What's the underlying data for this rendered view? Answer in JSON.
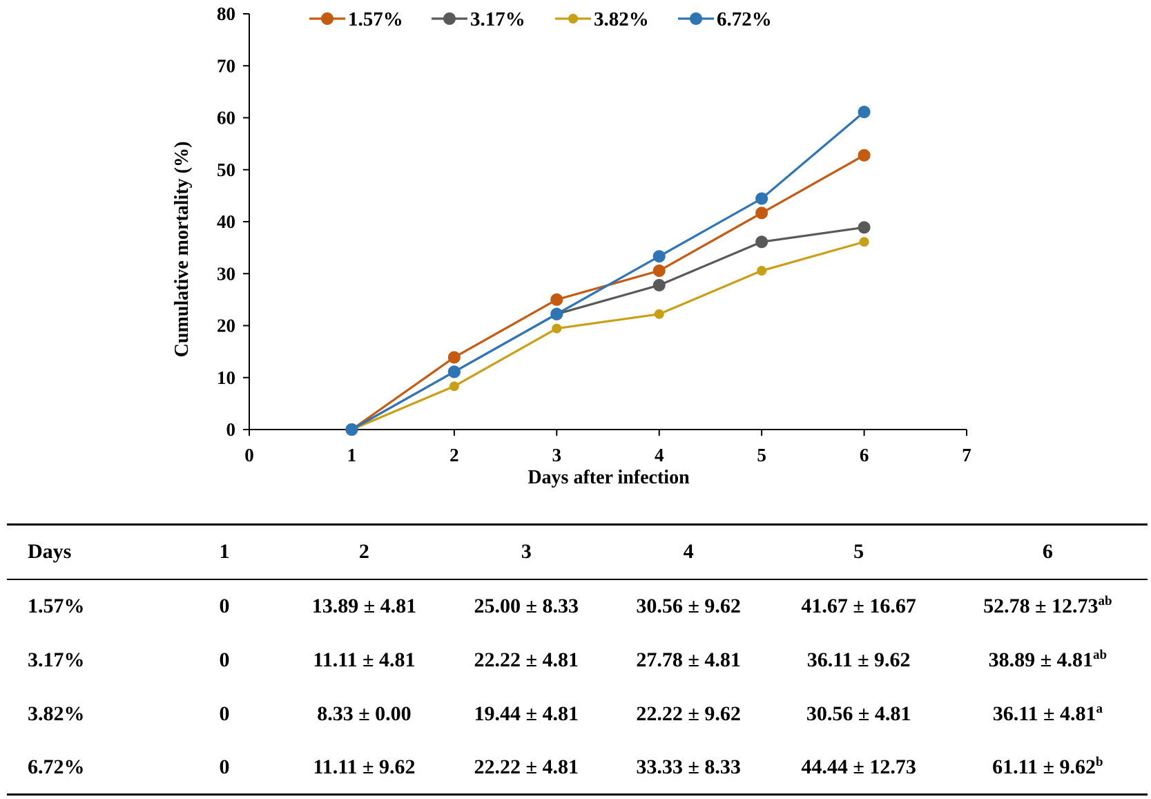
{
  "chart_data": {
    "type": "line",
    "xlabel": "Days after infection",
    "ylabel": "Cumulative mortality (%)",
    "xlim": [
      0,
      7
    ],
    "ylim": [
      0,
      80
    ],
    "x_ticks": [
      "0",
      "1",
      "2",
      "3",
      "4",
      "5",
      "6",
      "7"
    ],
    "y_ticks": [
      "0",
      "10",
      "20",
      "30",
      "40",
      "50",
      "60",
      "70",
      "80"
    ],
    "grid": false,
    "legend_position": "top",
    "x": [
      1,
      2,
      3,
      4,
      5,
      6
    ],
    "series": [
      {
        "name": "1.57%",
        "color": "#C55A11",
        "marker": "large",
        "values": [
          0,
          13.89,
          25.0,
          30.56,
          41.67,
          52.78
        ]
      },
      {
        "name": "3.17%",
        "color": "#595959",
        "marker": "large",
        "values": [
          0,
          11.11,
          22.22,
          27.78,
          36.11,
          38.89
        ]
      },
      {
        "name": "3.82%",
        "color": "#C9A015",
        "marker": "small",
        "values": [
          0,
          8.33,
          19.44,
          22.22,
          30.56,
          36.11
        ]
      },
      {
        "name": "6.72%",
        "color": "#2E75B6",
        "marker": "large",
        "values": [
          0,
          11.11,
          22.22,
          33.33,
          44.44,
          61.11
        ]
      }
    ]
  },
  "table": {
    "header": [
      "Days",
      "1",
      "2",
      "3",
      "4",
      "5",
      "6"
    ],
    "rows": [
      {
        "label": "1.57%",
        "cells": [
          {
            "v": "0"
          },
          {
            "v": "13.89 ± 4.81"
          },
          {
            "v": "25.00 ± 8.33"
          },
          {
            "v": "30.56 ± 9.62"
          },
          {
            "v": "41.67 ± 16.67"
          },
          {
            "v": "52.78 ± 12.73",
            "sup": "ab"
          }
        ]
      },
      {
        "label": "3.17%",
        "cells": [
          {
            "v": "0"
          },
          {
            "v": "11.11 ± 4.81"
          },
          {
            "v": "22.22 ± 4.81"
          },
          {
            "v": "27.78 ± 4.81"
          },
          {
            "v": "36.11 ± 9.62"
          },
          {
            "v": "38.89 ± 4.81",
            "sup": "ab"
          }
        ]
      },
      {
        "label": "3.82%",
        "cells": [
          {
            "v": "0"
          },
          {
            "v": "8.33 ± 0.00"
          },
          {
            "v": "19.44 ± 4.81"
          },
          {
            "v": "22.22 ± 9.62"
          },
          {
            "v": "30.56 ± 4.81"
          },
          {
            "v": "36.11 ± 4.81",
            "sup": "a"
          }
        ]
      },
      {
        "label": "6.72%",
        "cells": [
          {
            "v": "0"
          },
          {
            "v": "11.11 ± 9.62"
          },
          {
            "v": "22.22 ± 4.81"
          },
          {
            "v": "33.33 ± 8.33"
          },
          {
            "v": "44.44 ± 12.73"
          },
          {
            "v": "61.11 ± 9.62",
            "sup": "b"
          }
        ]
      }
    ]
  }
}
